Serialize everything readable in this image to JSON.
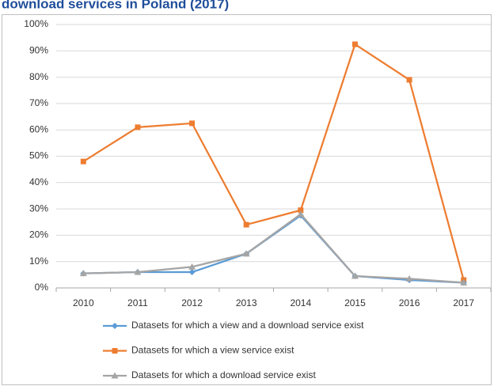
{
  "chart_data": {
    "type": "line",
    "title": "download services in Poland (2017)",
    "categories": [
      "2010",
      "2011",
      "2012",
      "2013",
      "2014",
      "2015",
      "2016",
      "2017"
    ],
    "series": [
      {
        "name": "Datasets for which a view and a download service exist",
        "color": "#5b9bd5",
        "marker": "diamond",
        "values": [
          5.5,
          6,
          6,
          13,
          27.5,
          4.5,
          3,
          2
        ]
      },
      {
        "name": "Datasets for which a view service exist",
        "color": "#ed7d31",
        "marker": "square",
        "values": [
          48,
          61,
          62.5,
          24,
          29.5,
          92.5,
          79,
          3
        ]
      },
      {
        "name": "Datasets for which a download service exist",
        "color": "#a5a5a5",
        "marker": "triangle",
        "values": [
          5.5,
          6,
          8,
          13,
          28,
          4.5,
          3.5,
          2
        ]
      }
    ],
    "ylim": [
      0,
      100
    ],
    "yticks": [
      {
        "value": 0,
        "label": "0%"
      },
      {
        "value": 10,
        "label": "10%"
      },
      {
        "value": 20,
        "label": "20%"
      },
      {
        "value": 30,
        "label": "30%"
      },
      {
        "value": 40,
        "label": "40%"
      },
      {
        "value": 50,
        "label": "50%"
      },
      {
        "value": 60,
        "label": "60%"
      },
      {
        "value": 70,
        "label": "70%"
      },
      {
        "value": 80,
        "label": "80%"
      },
      {
        "value": 90,
        "label": "90%"
      },
      {
        "value": 100,
        "label": "100%"
      }
    ],
    "grid": true,
    "legend": "bottom"
  }
}
